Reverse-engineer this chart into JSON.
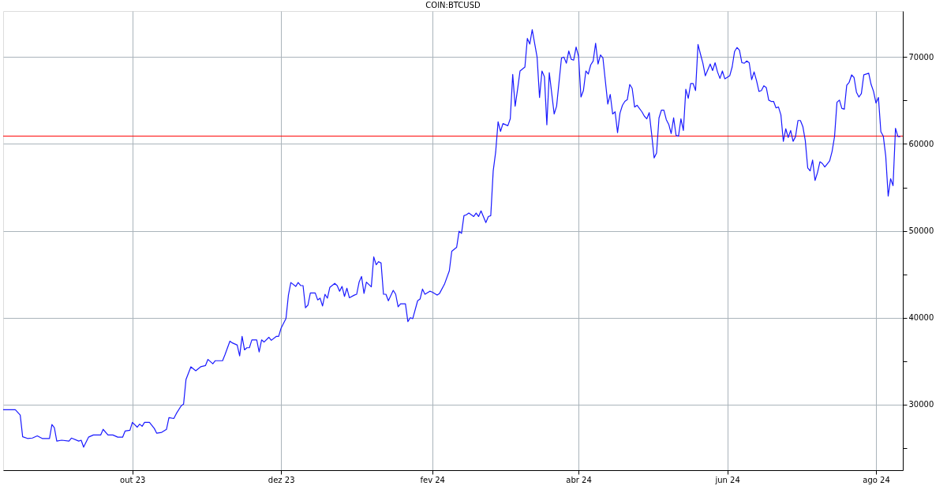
{
  "chart_data": {
    "type": "line",
    "title": "COIN:BTCUSD",
    "x": [
      "2023-08-09",
      "2023-08-14",
      "2023-08-16",
      "2023-08-17",
      "2023-08-19",
      "2023-08-21",
      "2023-08-23",
      "2023-08-25",
      "2023-08-28",
      "2023-08-29",
      "2023-08-30",
      "2023-08-31",
      "2023-09-02",
      "2023-09-05",
      "2023-09-06",
      "2023-09-09",
      "2023-09-10",
      "2023-09-11",
      "2023-09-13",
      "2023-09-15",
      "2023-09-18",
      "2023-09-19",
      "2023-09-21",
      "2023-09-23",
      "2023-09-25",
      "2023-09-27",
      "2023-09-28",
      "2023-09-30",
      "2023-10-01",
      "2023-10-03",
      "2023-10-04",
      "2023-10-05",
      "2023-10-06",
      "2023-10-08",
      "2023-10-10",
      "2023-10-11",
      "2023-10-13",
      "2023-10-15",
      "2023-10-16",
      "2023-10-18",
      "2023-10-19",
      "2023-10-21",
      "2023-10-22",
      "2023-10-23",
      "2023-10-25",
      "2023-10-27",
      "2023-10-29",
      "2023-10-31",
      "2023-11-01",
      "2023-11-03",
      "2023-11-04",
      "2023-11-07",
      "2023-11-08",
      "2023-11-10",
      "2023-11-11",
      "2023-11-13",
      "2023-11-14",
      "2023-11-15",
      "2023-11-16",
      "2023-11-17",
      "2023-11-18",
      "2023-11-19",
      "2023-11-21",
      "2023-11-22",
      "2023-11-23",
      "2023-11-24",
      "2023-11-26",
      "2023-11-27",
      "2023-11-29",
      "2023-11-30",
      "2023-12-01",
      "2023-12-03",
      "2023-12-04",
      "2023-12-05",
      "2023-12-07",
      "2023-12-08",
      "2023-12-09",
      "2023-12-10",
      "2023-12-11",
      "2023-12-12",
      "2023-12-13",
      "2023-12-15",
      "2023-12-16",
      "2023-12-17",
      "2023-12-18",
      "2023-12-19",
      "2023-12-20",
      "2023-12-21",
      "2023-12-23",
      "2023-12-24",
      "2023-12-25",
      "2023-12-26",
      "2023-12-27",
      "2023-12-28",
      "2023-12-29",
      "2023-12-31",
      "2024-01-01",
      "2024-01-02",
      "2024-01-03",
      "2024-01-04",
      "2024-01-05",
      "2024-01-07",
      "2024-01-08",
      "2024-01-09",
      "2024-01-10",
      "2024-01-11",
      "2024-01-12",
      "2024-01-13",
      "2024-01-14",
      "2024-01-16",
      "2024-01-17",
      "2024-01-18",
      "2024-01-19",
      "2024-01-21",
      "2024-01-22",
      "2024-01-23",
      "2024-01-24",
      "2024-01-26",
      "2024-01-27",
      "2024-01-28",
      "2024-01-29",
      "2024-01-31",
      "2024-02-01",
      "2024-02-03",
      "2024-02-04",
      "2024-02-06",
      "2024-02-08",
      "2024-02-09",
      "2024-02-11",
      "2024-02-12",
      "2024-02-13",
      "2024-02-14",
      "2024-02-15",
      "2024-02-16",
      "2024-02-18",
      "2024-02-19",
      "2024-02-20",
      "2024-02-21",
      "2024-02-23",
      "2024-02-24",
      "2024-02-25",
      "2024-02-26",
      "2024-02-27",
      "2024-02-28",
      "2024-02-29",
      "2024-03-01",
      "2024-03-03",
      "2024-03-04",
      "2024-03-05",
      "2024-03-06",
      "2024-03-07",
      "2024-03-08",
      "2024-03-10",
      "2024-03-11",
      "2024-03-12",
      "2024-03-13",
      "2024-03-15",
      "2024-03-16",
      "2024-03-17",
      "2024-03-18",
      "2024-03-19",
      "2024-03-20",
      "2024-03-22",
      "2024-03-23",
      "2024-03-25",
      "2024-03-26",
      "2024-03-27",
      "2024-03-28",
      "2024-03-29",
      "2024-03-30",
      "2024-03-31",
      "2024-04-01",
      "2024-04-02",
      "2024-04-03",
      "2024-04-04",
      "2024-04-05",
      "2024-04-06",
      "2024-04-07",
      "2024-04-08",
      "2024-04-09",
      "2024-04-10",
      "2024-04-11",
      "2024-04-13",
      "2024-04-14",
      "2024-04-15",
      "2024-04-16",
      "2024-04-17",
      "2024-04-18",
      "2024-04-19",
      "2024-04-20",
      "2024-04-21",
      "2024-04-22",
      "2024-04-23",
      "2024-04-24",
      "2024-04-25",
      "2024-04-27",
      "2024-04-28",
      "2024-04-29",
      "2024-04-30",
      "2024-05-01",
      "2024-05-02",
      "2024-05-03",
      "2024-05-04",
      "2024-05-05",
      "2024-05-06",
      "2024-05-07",
      "2024-05-08",
      "2024-05-09",
      "2024-05-10",
      "2024-05-11",
      "2024-05-12",
      "2024-05-13",
      "2024-05-14",
      "2024-05-15",
      "2024-05-16",
      "2024-05-17",
      "2024-05-18",
      "2024-05-19",
      "2024-05-20",
      "2024-05-21",
      "2024-05-22",
      "2024-05-23",
      "2024-05-25",
      "2024-05-26",
      "2024-05-27",
      "2024-05-28",
      "2024-05-29",
      "2024-05-30",
      "2024-05-31",
      "2024-06-02",
      "2024-06-03",
      "2024-06-04",
      "2024-06-05",
      "2024-06-06",
      "2024-06-07",
      "2024-06-08",
      "2024-06-09",
      "2024-06-10",
      "2024-06-11",
      "2024-06-12",
      "2024-06-13",
      "2024-06-14",
      "2024-06-15",
      "2024-06-16",
      "2024-06-17",
      "2024-06-18",
      "2024-06-19",
      "2024-06-20",
      "2024-06-21",
      "2024-06-22",
      "2024-06-23",
      "2024-06-24",
      "2024-06-25",
      "2024-06-26",
      "2024-06-27",
      "2024-06-28",
      "2024-06-29",
      "2024-06-30",
      "2024-07-01",
      "2024-07-02",
      "2024-07-03",
      "2024-07-04",
      "2024-07-05",
      "2024-07-06",
      "2024-07-07",
      "2024-07-08",
      "2024-07-09",
      "2024-07-10",
      "2024-07-11",
      "2024-07-12",
      "2024-07-13",
      "2024-07-14",
      "2024-07-15",
      "2024-07-16",
      "2024-07-17",
      "2024-07-18",
      "2024-07-19",
      "2024-07-20",
      "2024-07-21",
      "2024-07-22",
      "2024-07-23",
      "2024-07-24",
      "2024-07-25",
      "2024-07-26",
      "2024-07-27",
      "2024-07-28",
      "2024-07-29",
      "2024-07-30",
      "2024-07-31",
      "2024-08-01",
      "2024-08-02",
      "2024-08-03",
      "2024-08-04",
      "2024-08-05",
      "2024-08-06",
      "2024-08-07",
      "2024-08-08",
      "2024-08-09",
      "2024-08-10",
      "2024-08-11"
    ],
    "series": [
      {
        "color": "#1a1aff",
        "values": [
          29400,
          29400,
          28800,
          26300,
          26100,
          26150,
          26400,
          26100,
          26100,
          27700,
          27350,
          25800,
          25900,
          25800,
          26150,
          25800,
          25900,
          25100,
          26250,
          26500,
          26500,
          27150,
          26500,
          26500,
          26250,
          26250,
          26950,
          27050,
          27950,
          27400,
          27750,
          27500,
          27950,
          27950,
          27250,
          26700,
          26800,
          27150,
          28500,
          28400,
          28950,
          29850,
          30050,
          32900,
          34350,
          33900,
          34350,
          34500,
          35200,
          34700,
          35050,
          35050,
          35750,
          37300,
          37100,
          36850,
          35600,
          37850,
          36300,
          36550,
          36550,
          37450,
          37450,
          36050,
          37450,
          37200,
          37750,
          37400,
          37850,
          37850,
          38800,
          39900,
          42600,
          44050,
          43600,
          44050,
          43700,
          43700,
          41150,
          41450,
          42850,
          42850,
          42050,
          42250,
          41350,
          42700,
          42250,
          43500,
          43950,
          43700,
          43050,
          43600,
          42450,
          43400,
          42300,
          42600,
          42700,
          44100,
          44750,
          42800,
          44100,
          43550,
          47000,
          46100,
          46450,
          46300,
          42700,
          42700,
          41950,
          43150,
          42700,
          41250,
          41600,
          41600,
          39550,
          40000,
          39900,
          41950,
          42150,
          43300,
          42700,
          43050,
          42950,
          42600,
          42800,
          43850,
          45400,
          47650,
          48100,
          49950,
          49700,
          51750,
          51850,
          52050,
          51650,
          52050,
          51650,
          52300,
          50950,
          51650,
          51750,
          56900,
          59050,
          62550,
          61450,
          62350,
          62100,
          62900,
          68000,
          64350,
          66300,
          68400,
          68850,
          72150,
          71500,
          73150,
          70000,
          65350,
          68400,
          67750,
          62200,
          68200,
          63450,
          64350,
          69900,
          70000,
          69300,
          70700,
          69750,
          69650,
          71150,
          70100,
          65400,
          66150,
          68400,
          68050,
          69100,
          69550,
          71600,
          69200,
          70250,
          69900,
          64600,
          65700,
          63450,
          63700,
          61300,
          63550,
          64450,
          64900,
          65100,
          66850,
          66400,
          64250,
          64450,
          63700,
          63200,
          62900,
          63600,
          61100,
          58400,
          58950,
          63000,
          63900,
          63900,
          62800,
          62250,
          61200,
          63000,
          61000,
          60900,
          62900,
          61550,
          66300,
          65250,
          66950,
          66950,
          66150,
          71450,
          70350,
          69300,
          67850,
          69200,
          68450,
          69350,
          68300,
          67550,
          68400,
          67500,
          67850,
          68850,
          70650,
          71100,
          70800,
          69350,
          69300,
          69550,
          69350,
          67400,
          68300,
          67300,
          66050,
          66150,
          66700,
          66500,
          65050,
          64900,
          64900,
          64150,
          64250,
          63350,
          60300,
          61750,
          60750,
          61550,
          60300,
          60850,
          62700,
          62700,
          62000,
          60400,
          57250,
          56900,
          58150,
          55800,
          56700,
          57950,
          57750,
          57350,
          57700,
          58050,
          59150,
          60850,
          64800,
          65050,
          64100,
          64000,
          66750,
          67100,
          67950,
          67650,
          65950,
          65400,
          65800,
          67950,
          68050,
          68150,
          66850,
          66050,
          64700,
          65350,
          61400,
          60900,
          58600,
          54000,
          56000,
          55200,
          61800,
          60850,
          60850
        ]
      }
    ],
    "xlim": [
      "2023-08-09",
      "2024-08-12"
    ],
    "xticks": [
      {
        "value": "2023-10-01",
        "label": "out 23"
      },
      {
        "value": "2023-12-01",
        "label": "dez 23"
      },
      {
        "value": "2024-02-01",
        "label": "fev 24"
      },
      {
        "value": "2024-04-01",
        "label": "abr 24"
      },
      {
        "value": "2024-06-01",
        "label": "jun 24"
      },
      {
        "value": "2024-08-01",
        "label": "ago 24"
      }
    ],
    "ylim": [
      22450,
      75300
    ],
    "yticks": [
      {
        "value": 25000,
        "label": null
      },
      30000,
      {
        "value": 35000,
        "label": null
      },
      40000,
      {
        "value": 45000,
        "label": null
      },
      50000,
      {
        "value": 55000,
        "label": null
      },
      60000,
      {
        "value": 65000,
        "label": null
      },
      70000
    ],
    "ref_lines": [
      {
        "axis": "y",
        "value": 60900,
        "color": "#ff0000"
      }
    ],
    "grid": true,
    "marker": "none",
    "line_style": "solid"
  }
}
